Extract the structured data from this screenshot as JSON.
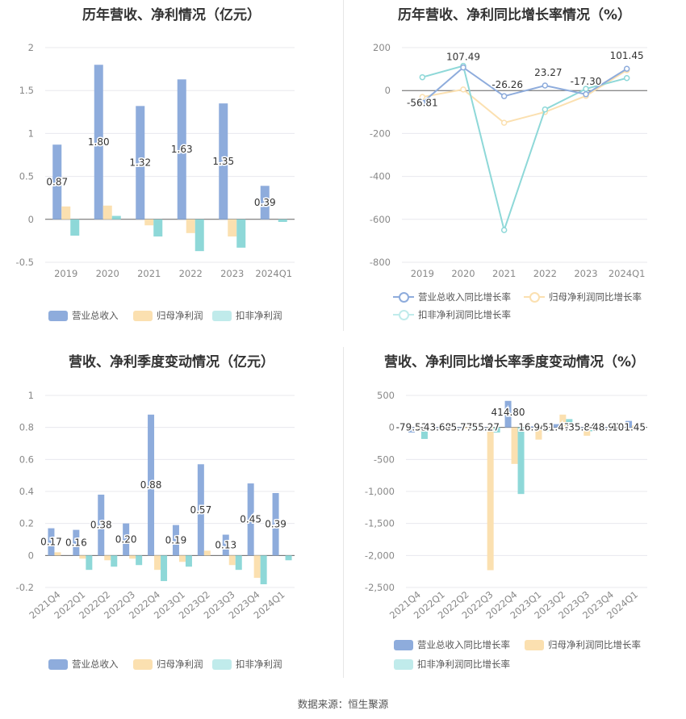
{
  "colors": {
    "revenue": "#8eacdc",
    "net_profit": "#fbe0b0",
    "deducted_profit": "#8ed8d8",
    "revenue_line": "#8eacdc",
    "net_profit_line": "#fbe0b0",
    "deducted_profit_line": "#8ed8d8",
    "grid": "#e8e8ee",
    "axis_text": "#888888"
  },
  "legends": {
    "chart1": [
      "营业总收入",
      "归母净利润",
      "扣非净利润"
    ],
    "chart2": [
      "营业总收入同比增长率",
      "归母净利润同比增长率",
      "扣非净利润同比增长率"
    ],
    "chart3": [
      "营业总收入",
      "归母净利润",
      "扣非净利润"
    ],
    "chart4": [
      "营业总收入同比增长率",
      "归母净利润同比增长率",
      "扣非净利润同比增长率"
    ]
  },
  "source": "数据来源：恒生聚源",
  "chart_data": [
    {
      "id": "chart1",
      "type": "bar",
      "title": "历年营收、净利情况（亿元）",
      "categories": [
        "2019",
        "2020",
        "2021",
        "2022",
        "2023",
        "2024Q1"
      ],
      "ylim": [
        -0.5,
        2
      ],
      "yticks": [
        -0.5,
        0,
        0.5,
        1,
        1.5,
        2
      ],
      "ytick_labels": [
        "-0.5",
        "0",
        "0.5",
        "1",
        "1.5",
        "2"
      ],
      "series": [
        {
          "name": "营业总收入",
          "values": [
            0.87,
            1.8,
            1.32,
            1.63,
            1.35,
            0.39
          ]
        },
        {
          "name": "归母净利润",
          "values": [
            0.15,
            0.16,
            -0.07,
            -0.16,
            -0.2,
            0.0
          ]
        },
        {
          "name": "扣非净利润",
          "values": [
            -0.19,
            0.04,
            -0.2,
            -0.37,
            -0.33,
            -0.03
          ]
        }
      ],
      "data_labels": [
        "0.87",
        "1.80",
        "1.32",
        "1.63",
        "1.35",
        "0.39"
      ],
      "grid": true,
      "legend_position": "bottom"
    },
    {
      "id": "chart2",
      "type": "line",
      "title": "历年营收、净利同比增长率情况（%）",
      "categories": [
        "2019",
        "2020",
        "2021",
        "2022",
        "2023",
        "2024Q1"
      ],
      "ylim": [
        -800,
        200
      ],
      "yticks": [
        -800,
        -600,
        -400,
        -200,
        0,
        200
      ],
      "ytick_labels": [
        "-800",
        "-600",
        "-400",
        "-200",
        "0",
        "200"
      ],
      "series": [
        {
          "name": "营业总收入同比增长率",
          "values": [
            -56.81,
            107.49,
            -26.26,
            23.27,
            -17.3,
            101.45
          ]
        },
        {
          "name": "归母净利润同比增长率",
          "values": [
            -30,
            5,
            -150,
            -100,
            -25,
            95
          ]
        },
        {
          "name": "扣非净利润同比增长率",
          "values": [
            62,
            115,
            -650,
            -88,
            8,
            58
          ]
        }
      ],
      "data_labels": [
        "-56.81",
        "107.49",
        "-26.26",
        "23.27",
        "-17.30",
        "101.45"
      ],
      "grid": true,
      "legend_position": "bottom"
    },
    {
      "id": "chart3",
      "type": "bar",
      "title": "营收、净利季度变动情况（亿元）",
      "categories": [
        "2021Q4",
        "2022Q1",
        "2022Q2",
        "2022Q3",
        "2022Q4",
        "2023Q1",
        "2023Q2",
        "2023Q3",
        "2023Q4",
        "2024Q1"
      ],
      "ylim": [
        -0.2,
        1
      ],
      "yticks": [
        -0.2,
        0,
        0.2,
        0.4,
        0.6,
        0.8,
        1
      ],
      "ytick_labels": [
        "-0.2",
        "0",
        "0.2",
        "0.4",
        "0.6",
        "0.8",
        "1"
      ],
      "series": [
        {
          "name": "营业总收入",
          "values": [
            0.17,
            0.16,
            0.38,
            0.2,
            0.88,
            0.19,
            0.57,
            0.13,
            0.45,
            0.39
          ]
        },
        {
          "name": "归母净利润",
          "values": [
            0.02,
            -0.02,
            -0.03,
            -0.02,
            -0.09,
            -0.04,
            0.03,
            -0.06,
            -0.14,
            0.0
          ]
        },
        {
          "name": "扣非净利润",
          "values": [
            0.0,
            -0.09,
            -0.07,
            -0.06,
            -0.16,
            -0.07,
            0.0,
            -0.09,
            -0.18,
            -0.03
          ]
        }
      ],
      "data_labels": [
        "0.17",
        "0.16",
        "0.38",
        "0.20",
        "0.88",
        "0.19",
        "0.57",
        "0.13",
        "0.45",
        "0.39"
      ],
      "grid": true,
      "legend_position": "bottom"
    },
    {
      "id": "chart4",
      "type": "bar",
      "title": "营收、净利同比增长率季度变动情况（%）",
      "categories": [
        "2021Q4",
        "2022Q1",
        "2022Q2",
        "2022Q3",
        "2022Q4",
        "2023Q1",
        "2023Q2",
        "2023Q3",
        "2023Q4",
        "2024Q1"
      ],
      "ylim": [
        -2500,
        500
      ],
      "yticks": [
        -2500,
        -2000,
        -1500,
        -1000,
        -500,
        0,
        500
      ],
      "ytick_labels": [
        "-2,500",
        "-2,000",
        "-1,500",
        "-1,000",
        "-500",
        "0",
        "500"
      ],
      "series": [
        {
          "name": "营业总收入同比增长率",
          "values": [
            -79.53,
            -43.68,
            -5.77,
            -55.27,
            414.8,
            16.94,
            51.47,
            -35.84,
            -48.92,
            101.45
          ]
        },
        {
          "name": "归母净利润同比增长率",
          "values": [
            -60,
            -20,
            -15,
            -2230,
            -570,
            -190,
            200,
            -130,
            -40,
            30
          ]
        },
        {
          "name": "扣非净利润同比增长率",
          "values": [
            -180,
            -30,
            -20,
            -80,
            -1040,
            -60,
            130,
            -60,
            -30,
            20
          ]
        }
      ],
      "data_labels": [
        "-79.53",
        "-43.68",
        "-5.77",
        "-55.27",
        "414.80",
        "16.94",
        "51.47",
        "-35.84",
        "-48.92",
        "101.45"
      ],
      "grid": true,
      "legend_position": "bottom"
    }
  ]
}
